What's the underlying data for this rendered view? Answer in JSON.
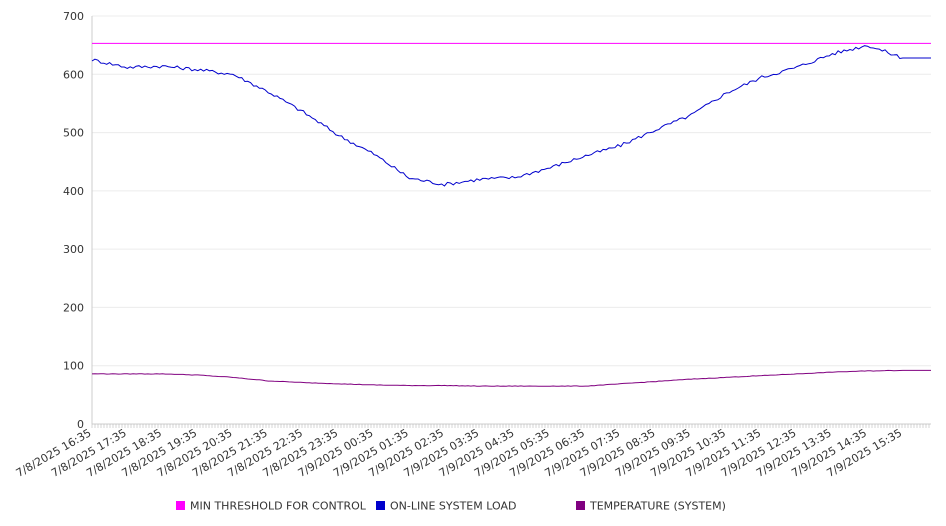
{
  "chart_data": {
    "type": "line",
    "title": "",
    "xlabel": "",
    "ylabel": "",
    "ylim": [
      0,
      700
    ],
    "yticks": [
      0,
      100,
      200,
      300,
      400,
      500,
      600,
      700
    ],
    "grid": true,
    "legend_position": "bottom",
    "x": [
      "7/8/2025 16:35",
      "7/8/2025 17:35",
      "7/8/2025 18:35",
      "7/8/2025 19:35",
      "7/8/2025 20:35",
      "7/8/2025 21:35",
      "7/8/2025 22:35",
      "7/8/2025 23:35",
      "7/9/2025 00:35",
      "7/9/2025 01:35",
      "7/9/2025 02:35",
      "7/9/2025 03:35",
      "7/9/2025 04:35",
      "7/9/2025 05:35",
      "7/9/2025 06:35",
      "7/9/2025 07:35",
      "7/9/2025 08:35",
      "7/9/2025 09:35",
      "7/9/2025 10:35",
      "7/9/2025 11:35",
      "7/9/2025 12:35",
      "7/9/2025 13:35",
      "7/9/2025 14:35",
      "7/9/2025 15:35"
    ],
    "series": [
      {
        "name": "MIN THRESHOLD FOR CONTROL",
        "color": "#ff00ff",
        "values": [
          653,
          653,
          653,
          653,
          653,
          653,
          653,
          653,
          653,
          653,
          653,
          653,
          653,
          653,
          653,
          653,
          653,
          653,
          653,
          653,
          653,
          653,
          653,
          653
        ]
      },
      {
        "name": "ON-LINE SYSTEM LOAD",
        "color": "#0000cc",
        "values": [
          625,
          612,
          614,
          608,
          600,
          570,
          535,
          495,
          463,
          422,
          411,
          420,
          423,
          440,
          460,
          478,
          505,
          530,
          568,
          595,
          612,
          635,
          650,
          628
        ]
      },
      {
        "name": "TEMPERATURE (SYSTEM)",
        "color": "#800080",
        "values": [
          86,
          86,
          86,
          84,
          80,
          74,
          71,
          69,
          67,
          66,
          66,
          65,
          65,
          65,
          65,
          69,
          73,
          77,
          80,
          83,
          86,
          89,
          91,
          92
        ]
      }
    ]
  }
}
